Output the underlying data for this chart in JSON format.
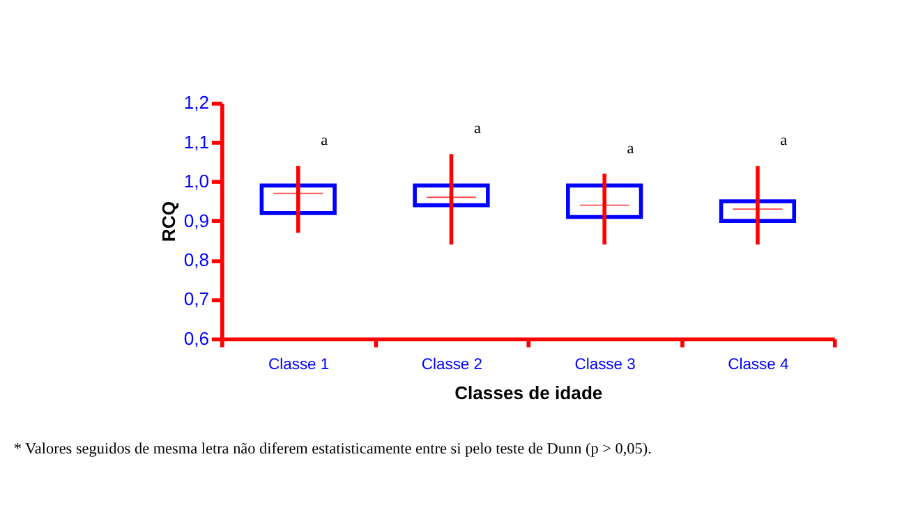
{
  "chart_data": {
    "type": "box",
    "xlabel": "Classes de idade",
    "ylabel": "RCQ",
    "categories": [
      "Classe 1",
      "Classe 2",
      "Classe 3",
      "Classe 4"
    ],
    "ylim": [
      0.6,
      1.2
    ],
    "yticks": [
      {
        "value": 0.6,
        "label": "0,6"
      },
      {
        "value": 0.7,
        "label": "0,7"
      },
      {
        "value": 0.8,
        "label": "0,8"
      },
      {
        "value": 0.9,
        "label": "0,9"
      },
      {
        "value": 1.0,
        "label": "1,0"
      },
      {
        "value": 1.1,
        "label": "1,1"
      },
      {
        "value": 1.2,
        "label": "1,2"
      }
    ],
    "series": [
      {
        "boxes": [
          {
            "low": 0.87,
            "q1": 0.92,
            "median": 0.97,
            "q3": 0.99,
            "high": 1.04
          },
          {
            "low": 0.84,
            "q1": 0.94,
            "median": 0.96,
            "q3": 0.99,
            "high": 1.07
          },
          {
            "low": 0.84,
            "q1": 0.91,
            "median": 0.94,
            "q3": 0.99,
            "high": 1.02
          },
          {
            "low": 0.84,
            "q1": 0.9,
            "median": 0.93,
            "q3": 0.95,
            "high": 1.04
          }
        ]
      }
    ],
    "annotations": [
      "a",
      "a",
      "a",
      "a",
      "* Valores seguidos de mesma letra não diferem estatisticamente entre si pelo teste de Dunn (p > 0,05)."
    ]
  }
}
